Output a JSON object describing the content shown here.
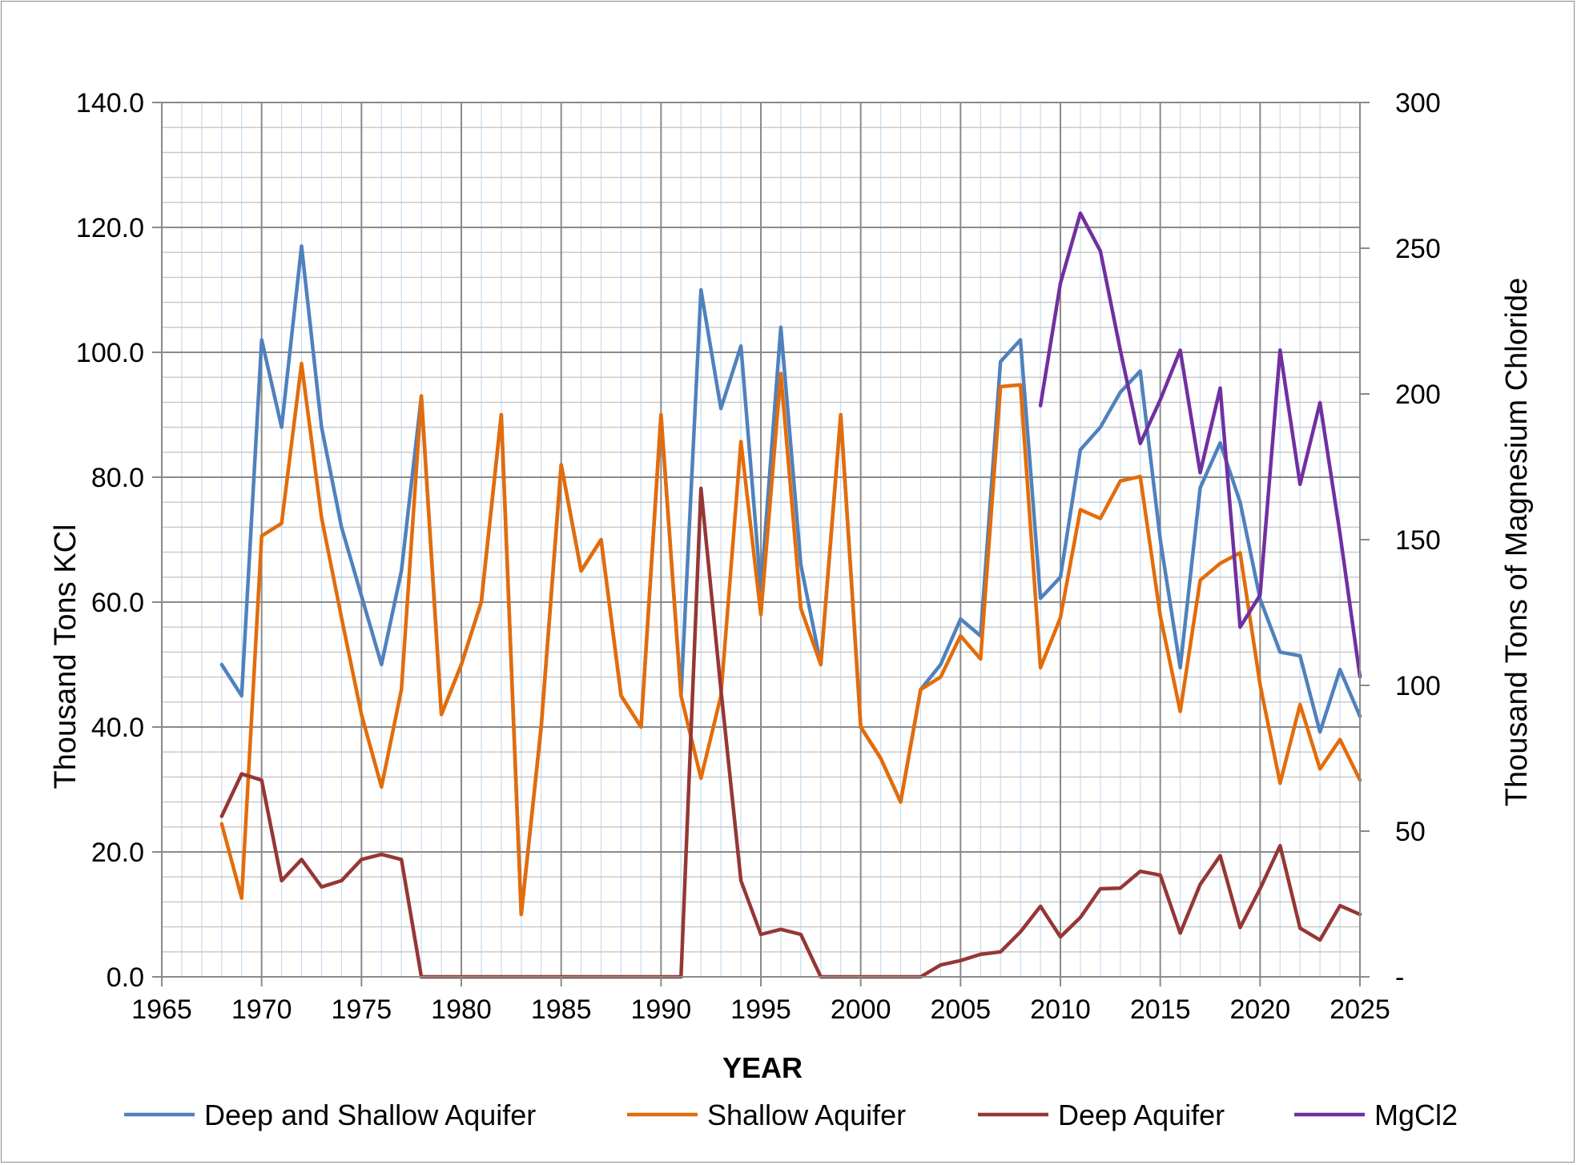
{
  "chart_data": {
    "type": "line",
    "title": "",
    "xlabel": "YEAR",
    "ylabel": "Thousand Tons KCl",
    "y2label": "Thousand Tons of Magnesium Chloride",
    "xlim": [
      1965,
      2025
    ],
    "ylim": [
      0,
      140
    ],
    "y2lim": [
      0,
      300
    ],
    "x_ticks": [
      "1965",
      "1970",
      "1975",
      "1980",
      "1985",
      "1990",
      "1995",
      "2000",
      "2005",
      "2010",
      "2015",
      "2020",
      "2025"
    ],
    "y_ticks": [
      "0.0",
      "20.0",
      "40.0",
      "60.0",
      "80.0",
      "100.0",
      "120.0",
      "140.0"
    ],
    "y2_ticks": [
      "-",
      "50",
      "100",
      "150",
      "200",
      "250",
      "300"
    ],
    "grid": true,
    "legend_position": "bottom",
    "series": [
      {
        "name": "Deep and Shallow Aquifer",
        "color": "#4f81bd",
        "axis": "left",
        "x": [
          1968,
          1969,
          1970,
          1971,
          1972,
          1973,
          1974,
          1975,
          1976,
          1977,
          1978,
          1979,
          1980,
          1981,
          1982,
          1983,
          1984,
          1985,
          1986,
          1987,
          1988,
          1989,
          1990,
          1991,
          1992,
          1993,
          1994,
          1995,
          1996,
          1997,
          1998,
          1999,
          2000,
          2001,
          2002,
          2003,
          2004,
          2005,
          2006,
          2007,
          2008,
          2009,
          2010,
          2011,
          2012,
          2013,
          2014,
          2015,
          2016,
          2017,
          2018,
          2019,
          2020,
          2021,
          2022,
          2023,
          2024,
          2025
        ],
        "values": [
          50,
          45,
          102,
          88,
          117,
          88,
          72,
          61,
          50,
          65,
          93,
          42,
          50,
          60,
          90,
          10,
          40,
          82,
          65,
          70,
          45,
          40,
          90,
          45,
          110,
          91,
          101,
          62,
          104,
          66,
          50,
          90,
          40,
          35,
          28,
          46,
          50,
          57.3,
          54.6,
          98.5,
          102,
          60.6,
          64,
          84.4,
          88,
          93.6,
          97,
          70,
          49.5,
          78.3,
          85.5,
          76,
          60.5,
          52,
          51.4,
          39.2,
          49.2,
          41.7
        ]
      },
      {
        "name": "Shallow Aquifer",
        "color": "#e36c0a",
        "axis": "left",
        "x": [
          1968,
          1969,
          1970,
          1971,
          1972,
          1973,
          1974,
          1975,
          1976,
          1977,
          1978,
          1979,
          1980,
          1981,
          1982,
          1983,
          1984,
          1985,
          1986,
          1987,
          1988,
          1989,
          1990,
          1991,
          1992,
          1993,
          1994,
          1995,
          1996,
          1997,
          1998,
          1999,
          2000,
          2001,
          2002,
          2003,
          2004,
          2005,
          2006,
          2007,
          2008,
          2009,
          2010,
          2011,
          2012,
          2013,
          2014,
          2015,
          2016,
          2017,
          2018,
          2019,
          2020,
          2021,
          2022,
          2023,
          2024,
          2025
        ],
        "values": [
          24.5,
          12.6,
          70.6,
          72.6,
          98.2,
          73.5,
          57.5,
          42,
          30.4,
          46,
          93,
          42,
          50,
          60,
          90,
          10,
          40,
          82,
          65,
          70,
          45,
          40,
          90,
          45,
          31.8,
          45,
          85.7,
          58,
          96.6,
          59,
          50,
          90,
          40,
          35,
          28,
          46,
          48,
          54.6,
          50.9,
          94.5,
          94.8,
          49.5,
          57.5,
          74.8,
          73.4,
          79.4,
          80.1,
          57.8,
          42.5,
          63.5,
          66.2,
          67.9,
          46.8,
          31,
          43.6,
          33.3,
          38,
          31.5
        ]
      },
      {
        "name": "Deep Aquifer",
        "color": "#953735",
        "axis": "left",
        "x": [
          1968,
          1969,
          1970,
          1971,
          1972,
          1973,
          1974,
          1975,
          1976,
          1977,
          1978,
          1979,
          1980,
          1981,
          1982,
          1983,
          1984,
          1985,
          1986,
          1987,
          1988,
          1989,
          1990,
          1991,
          1992,
          1993,
          1994,
          1995,
          1996,
          1997,
          1998,
          1999,
          2000,
          2001,
          2002,
          2003,
          2004,
          2005,
          2006,
          2007,
          2008,
          2009,
          2010,
          2011,
          2012,
          2013,
          2014,
          2015,
          2016,
          2017,
          2018,
          2019,
          2020,
          2021,
          2022,
          2023,
          2024,
          2025
        ],
        "values": [
          25.7,
          32.5,
          31.5,
          15.4,
          18.8,
          14.4,
          15.4,
          18.8,
          19.6,
          18.8,
          0,
          0,
          0,
          0,
          0,
          0,
          0,
          0,
          0,
          0,
          0,
          0,
          0,
          0,
          78.2,
          46,
          15.4,
          6.8,
          7.6,
          6.8,
          0,
          0,
          0,
          0,
          0,
          0,
          1.9,
          2.6,
          3.6,
          4,
          7.2,
          11.3,
          6.4,
          9.5,
          14.1,
          14.2,
          16.9,
          16.3,
          7,
          14.8,
          19.4,
          7.9,
          14.1,
          21,
          7.8,
          5.9,
          11.4,
          10
        ]
      },
      {
        "name": "MgCl2",
        "color": "#7030a0",
        "axis": "right",
        "x": [
          2009,
          2010,
          2011,
          2012,
          2013,
          2014,
          2015,
          2016,
          2017,
          2018,
          2019,
          2020,
          2021,
          2022,
          2023,
          2024,
          2025
        ],
        "values": [
          196,
          238,
          262,
          249,
          215,
          183,
          198,
          215,
          173,
          202,
          120,
          131,
          215,
          169,
          197,
          152,
          103
        ]
      }
    ]
  }
}
